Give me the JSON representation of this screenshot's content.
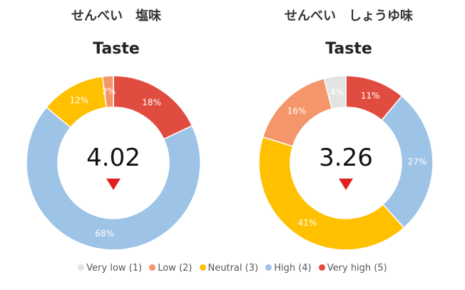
{
  "chart_data": [
    {
      "type": "pie",
      "product": "せんべい　塩味",
      "title": "Taste",
      "center_value": "4.02",
      "categories": [
        "Very low (1)",
        "Low (2)",
        "Neutral (3)",
        "High (4)",
        "Very high (5)"
      ],
      "values": [
        0,
        2,
        12,
        68,
        18
      ],
      "value_labels": [
        "",
        "2%",
        "12%",
        "68%",
        "18%"
      ],
      "segment_order": [
        4,
        3,
        2,
        1,
        0
      ]
    },
    {
      "type": "pie",
      "product": "せんべい　しょうゆ味",
      "title": "Taste",
      "center_value": "3.26",
      "categories": [
        "Very low (1)",
        "Low (2)",
        "Neutral (3)",
        "High (4)",
        "Very high (5)"
      ],
      "values": [
        4,
        16,
        41,
        27,
        11
      ],
      "value_labels": [
        "4%",
        "16%",
        "41%",
        "27%",
        "11%"
      ],
      "segment_order": [
        4,
        3,
        2,
        1,
        0
      ]
    }
  ],
  "legend": {
    "items": [
      {
        "label": "Very low (1)",
        "color": "#e3e3e3"
      },
      {
        "label": "Low (2)",
        "color": "#f4956a"
      },
      {
        "label": "Neutral (3)",
        "color": "#ffc000"
      },
      {
        "label": "High (4)",
        "color": "#9dc3e6"
      },
      {
        "label": "Very high (5)",
        "color": "#e04c3f"
      }
    ]
  },
  "marker_color": "#e02020"
}
